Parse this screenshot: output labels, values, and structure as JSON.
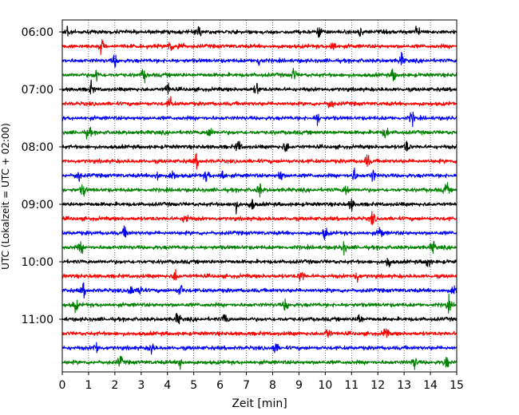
{
  "chart_data": {
    "type": "line",
    "title": "",
    "xlabel": "Zeit  [min]",
    "ylabel": "UTC (Lokalzeit = UTC + 02:00)",
    "xlim": [
      0,
      15
    ],
    "xticks": [
      0,
      1,
      2,
      3,
      4,
      5,
      6,
      7,
      8,
      9,
      10,
      11,
      12,
      13,
      14,
      15
    ],
    "grid": "vertical dotted lines at each minute",
    "yticks": [
      "06:00",
      "07:00",
      "08:00",
      "09:00",
      "10:00",
      "11:00"
    ],
    "ytick_rows": [
      0,
      4,
      8,
      12,
      16,
      20
    ],
    "trace_interval_minutes": 15,
    "color_cycle": [
      "#000000",
      "#ff0000",
      "#0000ff",
      "#008000"
    ],
    "series": [
      {
        "start": "06:00",
        "color": "#000000",
        "events_min": [
          0.2,
          5.2,
          9.8,
          11.3,
          13.5
        ]
      },
      {
        "start": "06:15",
        "color": "#ff0000",
        "events_min": [
          1.5,
          4.1,
          4.5,
          10.3
        ]
      },
      {
        "start": "06:30",
        "color": "#0000ff",
        "events_min": [
          2.0,
          7.5,
          12.9
        ]
      },
      {
        "start": "06:45",
        "color": "#008000",
        "events_min": [
          1.3,
          3.1,
          8.8,
          12.6
        ]
      },
      {
        "start": "07:00",
        "color": "#000000",
        "events_min": [
          1.1,
          4.0,
          7.4
        ]
      },
      {
        "start": "07:15",
        "color": "#ff0000",
        "events_min": [
          4.1,
          10.2
        ]
      },
      {
        "start": "07:30",
        "color": "#0000ff",
        "events_min": [
          9.7,
          13.3
        ]
      },
      {
        "start": "07:45",
        "color": "#008000",
        "events_min": [
          1.0,
          5.6,
          12.3
        ]
      },
      {
        "start": "08:00",
        "color": "#000000",
        "events_min": [
          6.7,
          8.5,
          13.1
        ]
      },
      {
        "start": "08:15",
        "color": "#ff0000",
        "events_min": [
          5.1,
          11.6
        ]
      },
      {
        "start": "08:30",
        "color": "#0000ff",
        "events_min": [
          0.6,
          3.6,
          4.2,
          5.5,
          6.1,
          8.3,
          11.1,
          11.8
        ]
      },
      {
        "start": "08:45",
        "color": "#008000",
        "events_min": [
          0.8,
          7.5,
          10.8,
          14.6
        ]
      },
      {
        "start": "09:00",
        "color": "#000000",
        "events_min": [
          6.6,
          7.2,
          11.0
        ]
      },
      {
        "start": "09:15",
        "color": "#ff0000",
        "events_min": [
          4.7,
          11.8
        ]
      },
      {
        "start": "09:30",
        "color": "#0000ff",
        "events_min": [
          2.4,
          10.0,
          12.1
        ]
      },
      {
        "start": "09:45",
        "color": "#008000",
        "events_min": [
          0.7,
          10.7,
          14.1
        ]
      },
      {
        "start": "10:00",
        "color": "#000000",
        "events_min": [
          12.4,
          13.9
        ]
      },
      {
        "start": "10:15",
        "color": "#ff0000",
        "events_min": [
          4.3,
          9.1,
          11.2
        ]
      },
      {
        "start": "10:30",
        "color": "#0000ff",
        "events_min": [
          0.8,
          2.6,
          3.0,
          4.5,
          14.9
        ]
      },
      {
        "start": "10:45",
        "color": "#008000",
        "events_min": [
          0.5,
          8.5,
          14.7
        ]
      },
      {
        "start": "11:00",
        "color": "#000000",
        "events_min": [
          4.4,
          6.2,
          11.3
        ]
      },
      {
        "start": "11:15",
        "color": "#ff0000",
        "events_min": [
          10.1,
          12.3
        ]
      },
      {
        "start": "11:30",
        "color": "#0000ff",
        "events_min": [
          1.3,
          3.4,
          8.1
        ]
      },
      {
        "start": "11:45",
        "color": "#008000",
        "events_min": [
          2.2,
          4.5,
          13.4,
          14.6
        ]
      }
    ]
  }
}
